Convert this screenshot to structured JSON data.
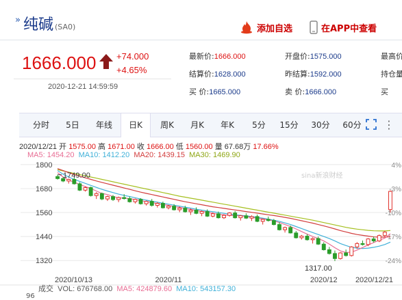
{
  "header": {
    "title": "纯碱",
    "code": "(SA0)",
    "fav_label": "添加自选",
    "app_label": "在APP中查看"
  },
  "quote": {
    "price": "1666.000",
    "change": "+74.000",
    "change_pct": "+4.65%",
    "timestamp": "2020-12-21 14:59:59",
    "fields": [
      [
        {
          "label": "最新价:",
          "value": "1666.000",
          "red": true
        },
        {
          "label": "开盘价:",
          "value": "1575.000"
        },
        {
          "label": "最高价",
          "value": ""
        }
      ],
      [
        {
          "label": "结算价:",
          "value": "1628.000"
        },
        {
          "label": "昨结算:",
          "value": "1592.000"
        },
        {
          "label": "持仓量",
          "value": ""
        }
      ],
      [
        {
          "label": "买  价:",
          "value": "1665.000"
        },
        {
          "label": "卖  价:",
          "value": "1666.000"
        },
        {
          "label": "买",
          "value": ""
        }
      ]
    ]
  },
  "tabs": [
    "分时",
    "5日",
    "年线",
    "日K",
    "周K",
    "月K",
    "年K",
    "5分",
    "15分",
    "30分",
    "60分"
  ],
  "active_tab": "日K",
  "kline_info": {
    "date": "2020/12/21",
    "open_label": "开",
    "open": "1575.00",
    "high_label": "高",
    "high": "1671.00",
    "close_label": "收",
    "close": "1666.00",
    "low_label": "低",
    "low": "1560.00",
    "vol_label": "量",
    "vol": "67.68万",
    "pct": "17.66%",
    "ma5": "MA5: 1454.20",
    "ma10": "MA10: 1412.20",
    "ma20": "MA20: 1439.15",
    "ma30": "MA30: 1469.90"
  },
  "volume_info": {
    "label": "成交",
    "vol": "VOL: 676768.00",
    "ma5": "MA5: 424879.60",
    "ma10": "MA10: 543157.30",
    "first_tick": "96"
  },
  "watermark": "sina新浪财经",
  "colors": {
    "up": "#e0302a",
    "down": "#2a9d2a",
    "ma5": "#e86d94",
    "ma10": "#3fb0d8",
    "ma20": "#d23c3c",
    "ma30": "#a5bf1e",
    "accent": "#d11"
  },
  "chart_data": {
    "type": "candlestick",
    "y_ticks": [
      1800,
      1680,
      1560,
      1440,
      1320
    ],
    "ylim": [
      1290,
      1820
    ],
    "pct_ticks": [
      "4%",
      "-3%",
      "-10%",
      "-17%",
      "-24%"
    ],
    "x_labels": [
      "2020/10/13",
      "2020/11",
      "2020/12",
      "2020/12/21"
    ],
    "annotations": {
      "high": "1749.00",
      "low": "1317.00"
    },
    "candles": [
      [
        1740,
        1749,
        1725,
        1730
      ],
      [
        1730,
        1738,
        1712,
        1718
      ],
      [
        1718,
        1730,
        1705,
        1726
      ],
      [
        1726,
        1735,
        1700,
        1704
      ],
      [
        1704,
        1712,
        1668,
        1672
      ],
      [
        1672,
        1690,
        1665,
        1685
      ],
      [
        1685,
        1690,
        1640,
        1645
      ],
      [
        1645,
        1662,
        1628,
        1655
      ],
      [
        1655,
        1660,
        1622,
        1628
      ],
      [
        1628,
        1645,
        1618,
        1640
      ],
      [
        1640,
        1648,
        1618,
        1625
      ],
      [
        1625,
        1640,
        1612,
        1635
      ],
      [
        1635,
        1652,
        1625,
        1630
      ],
      [
        1630,
        1640,
        1610,
        1614
      ],
      [
        1614,
        1630,
        1605,
        1626
      ],
      [
        1626,
        1632,
        1600,
        1604
      ],
      [
        1604,
        1620,
        1595,
        1616
      ],
      [
        1616,
        1628,
        1590,
        1596
      ],
      [
        1596,
        1612,
        1585,
        1606
      ],
      [
        1606,
        1615,
        1580,
        1584
      ],
      [
        1584,
        1598,
        1576,
        1592
      ],
      [
        1592,
        1602,
        1570,
        1574
      ],
      [
        1574,
        1590,
        1562,
        1582
      ],
      [
        1582,
        1594,
        1560,
        1564
      ],
      [
        1564,
        1580,
        1548,
        1572
      ],
      [
        1572,
        1586,
        1552,
        1556
      ],
      [
        1556,
        1570,
        1542,
        1565
      ],
      [
        1565,
        1576,
        1538,
        1542
      ],
      [
        1542,
        1560,
        1536,
        1554
      ],
      [
        1554,
        1565,
        1530,
        1534
      ],
      [
        1534,
        1552,
        1528,
        1546
      ],
      [
        1546,
        1562,
        1540,
        1558
      ],
      [
        1558,
        1568,
        1530,
        1534
      ],
      [
        1534,
        1548,
        1520,
        1544
      ],
      [
        1544,
        1556,
        1528,
        1532
      ],
      [
        1532,
        1546,
        1518,
        1540
      ],
      [
        1540,
        1550,
        1512,
        1516
      ],
      [
        1516,
        1530,
        1500,
        1526
      ],
      [
        1526,
        1540,
        1515,
        1520
      ],
      [
        1520,
        1528,
        1496,
        1500
      ],
      [
        1500,
        1512,
        1470,
        1474
      ],
      [
        1474,
        1490,
        1460,
        1485
      ],
      [
        1485,
        1495,
        1455,
        1458
      ],
      [
        1458,
        1468,
        1430,
        1434
      ],
      [
        1434,
        1448,
        1425,
        1442
      ],
      [
        1442,
        1452,
        1420,
        1424
      ],
      [
        1424,
        1436,
        1405,
        1430
      ],
      [
        1430,
        1440,
        1398,
        1402
      ],
      [
        1402,
        1412,
        1370,
        1374
      ],
      [
        1374,
        1388,
        1350,
        1355
      ],
      [
        1355,
        1370,
        1317,
        1330
      ],
      [
        1330,
        1362,
        1325,
        1358
      ],
      [
        1358,
        1375,
        1340,
        1345
      ],
      [
        1345,
        1392,
        1340,
        1388
      ],
      [
        1388,
        1412,
        1378,
        1405
      ],
      [
        1405,
        1420,
        1395,
        1400
      ],
      [
        1400,
        1432,
        1392,
        1428
      ],
      [
        1428,
        1440,
        1410,
        1418
      ],
      [
        1418,
        1450,
        1412,
        1445
      ],
      [
        1445,
        1468,
        1438,
        1462
      ],
      [
        1575,
        1671,
        1560,
        1666
      ]
    ],
    "ma5": [
      1760,
      1738,
      1722,
      1712,
      1700,
      1690,
      1680,
      1668,
      1656,
      1650,
      1640,
      1634,
      1632,
      1630,
      1625,
      1620,
      1614,
      1610,
      1605,
      1600,
      1596,
      1590,
      1586,
      1580,
      1576,
      1570,
      1566,
      1562,
      1556,
      1552,
      1548,
      1546,
      1545,
      1544,
      1540,
      1536,
      1532,
      1528,
      1524,
      1518,
      1510,
      1500,
      1490,
      1478,
      1465,
      1452,
      1440,
      1430,
      1418,
      1402,
      1384,
      1368,
      1360,
      1362,
      1372,
      1385,
      1398,
      1410,
      1422,
      1432,
      1454
    ],
    "ma10": [
      1770,
      1752,
      1738,
      1726,
      1716,
      1706,
      1696,
      1686,
      1676,
      1668,
      1660,
      1652,
      1646,
      1640,
      1634,
      1628,
      1622,
      1617,
      1612,
      1607,
      1602,
      1597,
      1592,
      1587,
      1582,
      1577,
      1572,
      1568,
      1564,
      1560,
      1556,
      1552,
      1549,
      1546,
      1543,
      1540,
      1536,
      1532,
      1527,
      1522,
      1516,
      1508,
      1500,
      1490,
      1480,
      1470,
      1460,
      1450,
      1440,
      1430,
      1418,
      1405,
      1395,
      1386,
      1382,
      1380,
      1382,
      1386,
      1392,
      1400,
      1412
    ],
    "ma20": [
      1780,
      1770,
      1760,
      1750,
      1742,
      1734,
      1726,
      1718,
      1711,
      1704,
      1697,
      1690,
      1683,
      1676,
      1669,
      1662,
      1656,
      1650,
      1644,
      1638,
      1632,
      1626,
      1620,
      1614,
      1609,
      1604,
      1599,
      1594,
      1589,
      1585,
      1581,
      1577,
      1573,
      1569,
      1565,
      1561,
      1557,
      1553,
      1549,
      1545,
      1541,
      1536,
      1531,
      1525,
      1519,
      1513,
      1507,
      1500,
      1493,
      1486,
      1478,
      1470,
      1463,
      1456,
      1450,
      1446,
      1442,
      1438,
      1437,
      1437,
      1439
    ],
    "ma30": [
      1775,
      1768,
      1762,
      1756,
      1750,
      1744,
      1738,
      1732,
      1726,
      1720,
      1714,
      1708,
      1702,
      1696,
      1690,
      1684,
      1678,
      1672,
      1666,
      1660,
      1654,
      1648,
      1642,
      1637,
      1632,
      1627,
      1622,
      1617,
      1612,
      1607,
      1602,
      1597,
      1592,
      1587,
      1582,
      1577,
      1572,
      1567,
      1562,
      1557,
      1552,
      1547,
      1542,
      1537,
      1532,
      1527,
      1522,
      1516,
      1510,
      1504,
      1498,
      1492,
      1486,
      1481,
      1477,
      1474,
      1471,
      1469,
      1468,
      1468,
      1470
    ]
  }
}
